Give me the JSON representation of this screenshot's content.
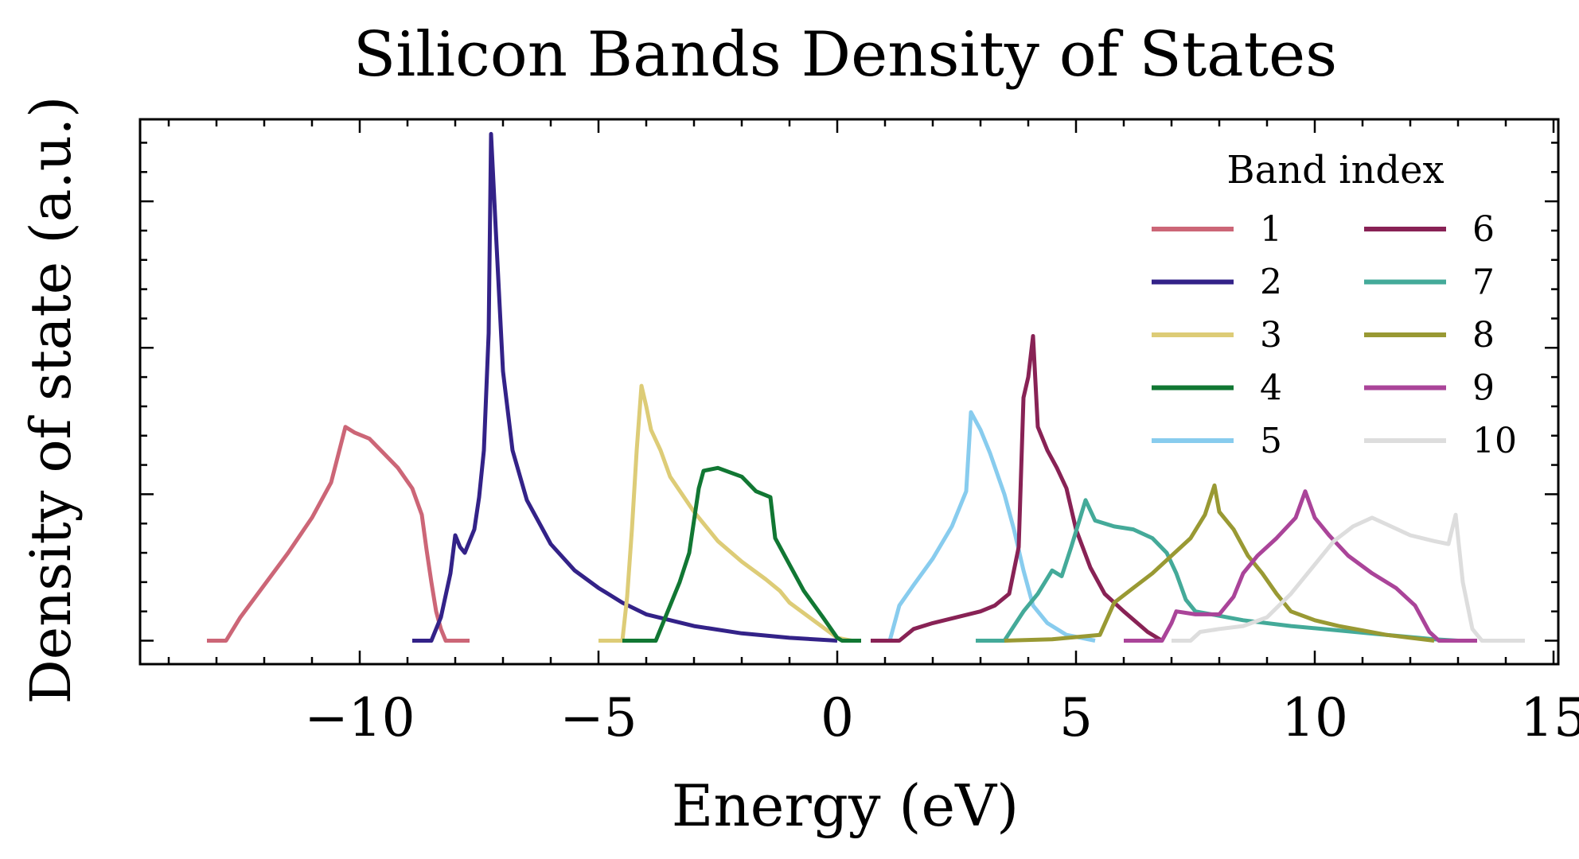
{
  "chart_data": {
    "type": "line",
    "title": "Silicon Bands Density of States",
    "xlabel": "Energy (eV)",
    "ylabel": "Density of state (a.u.)",
    "xlim": [
      -14.6,
      15.1
    ],
    "ylim": [
      -0.8,
      17.8
    ],
    "x_ticks": [
      -10,
      -5,
      0,
      5,
      10,
      15
    ],
    "x_tick_labels": [
      "−10",
      "−5",
      "0",
      "5",
      "10",
      "15"
    ],
    "y_tick_labels_shown": false,
    "grid": false,
    "legend": {
      "title": "Band index",
      "placement": "top-right",
      "columns": 2
    },
    "series": [
      {
        "name": "1",
        "color": "#CC6677",
        "points": [
          [
            -13.2,
            0
          ],
          [
            -12.8,
            0
          ],
          [
            -12.5,
            0.8
          ],
          [
            -12.0,
            1.9
          ],
          [
            -11.5,
            3.0
          ],
          [
            -11.0,
            4.2
          ],
          [
            -10.6,
            5.4
          ],
          [
            -10.3,
            7.3
          ],
          [
            -10.1,
            7.1
          ],
          [
            -9.8,
            6.9
          ],
          [
            -9.5,
            6.4
          ],
          [
            -9.2,
            5.9
          ],
          [
            -8.9,
            5.2
          ],
          [
            -8.7,
            4.3
          ],
          [
            -8.6,
            3.1
          ],
          [
            -8.5,
            2.0
          ],
          [
            -8.4,
            1.0
          ],
          [
            -8.3,
            0.4
          ],
          [
            -8.2,
            0
          ],
          [
            -7.7,
            0
          ]
        ]
      },
      {
        "name": "2",
        "color": "#332288",
        "points": [
          [
            -8.9,
            0
          ],
          [
            -8.5,
            0
          ],
          [
            -8.3,
            0.8
          ],
          [
            -8.1,
            2.3
          ],
          [
            -8.0,
            3.6
          ],
          [
            -7.9,
            3.2
          ],
          [
            -7.8,
            3.0
          ],
          [
            -7.6,
            3.8
          ],
          [
            -7.5,
            4.9
          ],
          [
            -7.4,
            6.5
          ],
          [
            -7.3,
            10.5
          ],
          [
            -7.25,
            17.3
          ],
          [
            -7.15,
            14.0
          ],
          [
            -7.0,
            9.2
          ],
          [
            -6.8,
            6.5
          ],
          [
            -6.5,
            4.8
          ],
          [
            -6.0,
            3.3
          ],
          [
            -5.5,
            2.4
          ],
          [
            -5.0,
            1.8
          ],
          [
            -4.5,
            1.3
          ],
          [
            -4.0,
            0.9
          ],
          [
            -3.0,
            0.5
          ],
          [
            -2.0,
            0.25
          ],
          [
            -1.0,
            0.1
          ],
          [
            0.0,
            0
          ]
        ]
      },
      {
        "name": "3",
        "color": "#DDCC77",
        "points": [
          [
            -5.0,
            0
          ],
          [
            -4.5,
            0
          ],
          [
            -4.4,
            1.5
          ],
          [
            -4.3,
            3.8
          ],
          [
            -4.2,
            6.5
          ],
          [
            -4.1,
            8.7
          ],
          [
            -4.0,
            8.0
          ],
          [
            -3.9,
            7.2
          ],
          [
            -3.7,
            6.5
          ],
          [
            -3.5,
            5.6
          ],
          [
            -3.0,
            4.4
          ],
          [
            -2.5,
            3.4
          ],
          [
            -2.0,
            2.7
          ],
          [
            -1.5,
            2.1
          ],
          [
            -1.2,
            1.7
          ],
          [
            -1.0,
            1.3
          ],
          [
            -0.5,
            0.7
          ],
          [
            0,
            0.1
          ],
          [
            0.3,
            0
          ]
        ]
      },
      {
        "name": "4",
        "color": "#117733",
        "points": [
          [
            -4.5,
            0
          ],
          [
            -3.8,
            0
          ],
          [
            -3.6,
            0.8
          ],
          [
            -3.4,
            1.6
          ],
          [
            -3.3,
            2.0
          ],
          [
            -3.1,
            3.0
          ],
          [
            -2.9,
            5.2
          ],
          [
            -2.8,
            5.8
          ],
          [
            -2.5,
            5.9
          ],
          [
            -2.0,
            5.6
          ],
          [
            -1.7,
            5.1
          ],
          [
            -1.4,
            4.9
          ],
          [
            -1.3,
            3.5
          ],
          [
            -1.0,
            2.6
          ],
          [
            -0.7,
            1.7
          ],
          [
            -0.3,
            0.8
          ],
          [
            0,
            0.1
          ],
          [
            0.1,
            0
          ],
          [
            0.5,
            0
          ]
        ]
      },
      {
        "name": "5",
        "color": "#88CCEE",
        "points": [
          [
            1.1,
            0
          ],
          [
            1.3,
            1.2
          ],
          [
            1.6,
            1.9
          ],
          [
            2.0,
            2.8
          ],
          [
            2.4,
            3.9
          ],
          [
            2.7,
            5.1
          ],
          [
            2.8,
            7.8
          ],
          [
            3.0,
            7.2
          ],
          [
            3.2,
            6.4
          ],
          [
            3.5,
            5.0
          ],
          [
            3.7,
            3.8
          ],
          [
            3.9,
            2.4
          ],
          [
            4.1,
            1.2
          ],
          [
            4.4,
            0.6
          ],
          [
            4.8,
            0.2
          ],
          [
            5.4,
            0
          ]
        ]
      },
      {
        "name": "6",
        "color": "#882255",
        "points": [
          [
            0.7,
            0
          ],
          [
            1.3,
            0
          ],
          [
            1.6,
            0.4
          ],
          [
            2.0,
            0.6
          ],
          [
            2.5,
            0.8
          ],
          [
            3.0,
            1.0
          ],
          [
            3.3,
            1.2
          ],
          [
            3.6,
            1.6
          ],
          [
            3.8,
            3.2
          ],
          [
            3.9,
            8.3
          ],
          [
            4.0,
            9.0
          ],
          [
            4.1,
            10.4
          ],
          [
            4.2,
            7.3
          ],
          [
            4.4,
            6.5
          ],
          [
            4.6,
            5.9
          ],
          [
            4.8,
            5.2
          ],
          [
            5.0,
            3.8
          ],
          [
            5.3,
            2.5
          ],
          [
            5.6,
            1.6
          ],
          [
            6.0,
            1.0
          ],
          [
            6.5,
            0.3
          ],
          [
            6.8,
            0
          ]
        ]
      },
      {
        "name": "7",
        "color": "#44AA99",
        "points": [
          [
            2.9,
            0
          ],
          [
            3.5,
            0
          ],
          [
            3.9,
            1.0
          ],
          [
            4.2,
            1.6
          ],
          [
            4.5,
            2.4
          ],
          [
            4.7,
            2.2
          ],
          [
            4.9,
            3.2
          ],
          [
            5.2,
            4.8
          ],
          [
            5.4,
            4.1
          ],
          [
            5.8,
            3.9
          ],
          [
            6.2,
            3.8
          ],
          [
            6.6,
            3.5
          ],
          [
            6.9,
            3.0
          ],
          [
            7.1,
            2.3
          ],
          [
            7.3,
            1.4
          ],
          [
            7.5,
            1.0
          ],
          [
            8.5,
            0.7
          ],
          [
            9.5,
            0.5
          ],
          [
            10.5,
            0.35
          ],
          [
            11.5,
            0.2
          ],
          [
            12.5,
            0.05
          ],
          [
            13.0,
            0
          ]
        ]
      },
      {
        "name": "8",
        "color": "#999933",
        "points": [
          [
            3.5,
            0
          ],
          [
            4.5,
            0.05
          ],
          [
            5.5,
            0.2
          ],
          [
            5.8,
            1.3
          ],
          [
            6.2,
            1.8
          ],
          [
            6.6,
            2.3
          ],
          [
            7.0,
            2.9
          ],
          [
            7.4,
            3.5
          ],
          [
            7.7,
            4.3
          ],
          [
            7.9,
            5.3
          ],
          [
            8.0,
            4.4
          ],
          [
            8.3,
            3.8
          ],
          [
            8.6,
            2.9
          ],
          [
            8.9,
            2.3
          ],
          [
            9.2,
            1.6
          ],
          [
            9.5,
            1.0
          ],
          [
            10.0,
            0.7
          ],
          [
            10.5,
            0.5
          ],
          [
            11.0,
            0.35
          ],
          [
            11.5,
            0.2
          ],
          [
            12.0,
            0.1
          ],
          [
            12.5,
            0
          ]
        ]
      },
      {
        "name": "9",
        "color": "#AA4499",
        "points": [
          [
            6.0,
            0
          ],
          [
            6.8,
            0
          ],
          [
            7.0,
            0.6
          ],
          [
            7.1,
            1.0
          ],
          [
            7.5,
            0.9
          ],
          [
            8.0,
            0.9
          ],
          [
            8.3,
            1.5
          ],
          [
            8.5,
            2.3
          ],
          [
            8.8,
            2.9
          ],
          [
            9.2,
            3.5
          ],
          [
            9.6,
            4.2
          ],
          [
            9.8,
            5.1
          ],
          [
            10.0,
            4.2
          ],
          [
            10.3,
            3.6
          ],
          [
            10.7,
            2.9
          ],
          [
            11.2,
            2.3
          ],
          [
            11.7,
            1.8
          ],
          [
            12.1,
            1.2
          ],
          [
            12.4,
            0.3
          ],
          [
            12.6,
            0
          ],
          [
            13.4,
            0
          ]
        ]
      },
      {
        "name": "10",
        "color": "#DDDDDD",
        "points": [
          [
            7.0,
            0
          ],
          [
            7.4,
            0
          ],
          [
            7.6,
            0.3
          ],
          [
            8.0,
            0.4
          ],
          [
            8.5,
            0.5
          ],
          [
            9.0,
            0.8
          ],
          [
            9.5,
            1.6
          ],
          [
            10.0,
            2.6
          ],
          [
            10.4,
            3.4
          ],
          [
            10.8,
            3.9
          ],
          [
            11.2,
            4.2
          ],
          [
            11.6,
            3.9
          ],
          [
            12.0,
            3.6
          ],
          [
            12.5,
            3.4
          ],
          [
            12.8,
            3.3
          ],
          [
            12.95,
            4.3
          ],
          [
            13.1,
            2.0
          ],
          [
            13.3,
            0.4
          ],
          [
            13.5,
            0
          ],
          [
            14.4,
            0
          ]
        ]
      }
    ]
  }
}
